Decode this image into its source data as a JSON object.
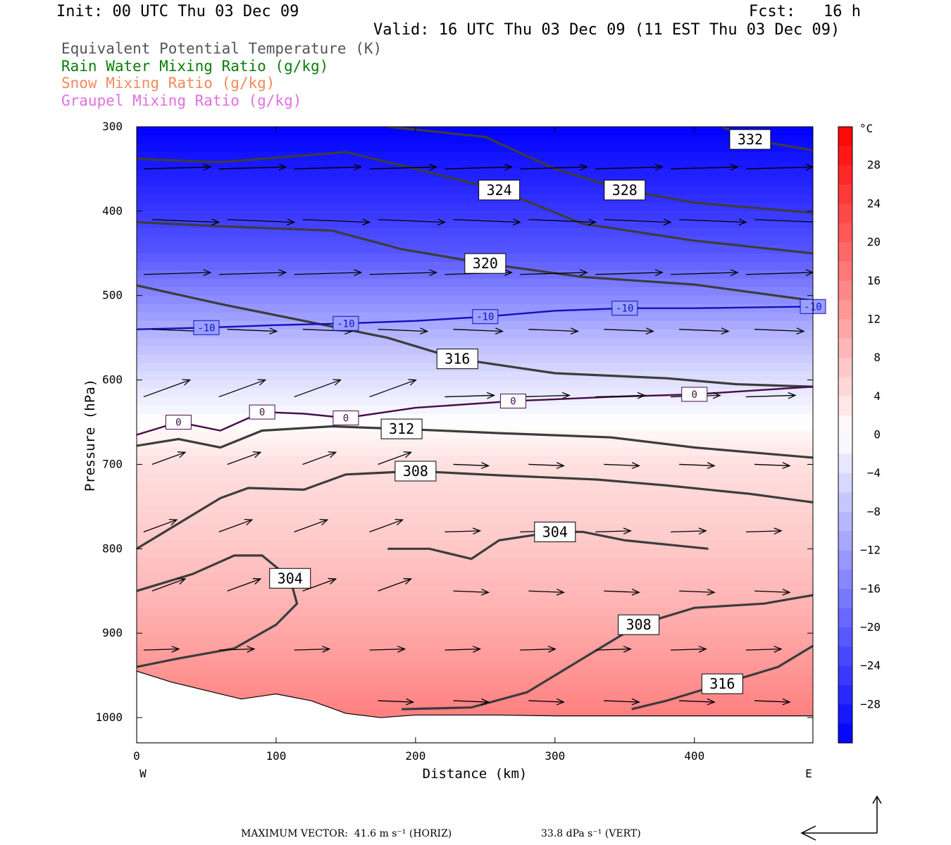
{
  "header": {
    "init": "Init: 00 UTC Thu 03 Dec 09",
    "fcst": "Fcst:   16 h",
    "valid": "Valid: 16 UTC Thu 03 Dec 09 (11 EST Thu 03 Dec 09)"
  },
  "legend": [
    {
      "text": "Equivalent Potential Temperature (K)",
      "color": "#555555"
    },
    {
      "text": "Rain Water Mixing Ratio (g/kg)",
      "color": "#0a7d0a"
    },
    {
      "text": "Snow Mixing Ratio (g/kg)",
      "color": "#f08a5a"
    },
    {
      "text": "Graupel Mixing Ratio (g/kg)",
      "color": "#e070e0"
    }
  ],
  "footer": {
    "max_vector_horiz": "MAXIMUM VECTOR:  41.6 m s⁻¹ (HORIZ)",
    "max_vector_vert": "33.8 dPa s⁻¹ (VERT)"
  },
  "chart_data": {
    "type": "heatmap",
    "xlabel": "Distance (km)",
    "ylabel": "Pressure (hPa)",
    "xlim": [
      0,
      485
    ],
    "ylim": [
      1030,
      300
    ],
    "x_ticks": [
      0,
      100,
      200,
      300,
      400
    ],
    "y_ticks": [
      300,
      400,
      500,
      600,
      700,
      800,
      900,
      1000
    ],
    "x_end_labels": {
      "left": "W",
      "right": "E"
    },
    "colorbar": {
      "unit": "°C",
      "ticks": [
        28,
        24,
        20,
        16,
        12,
        8,
        4,
        0,
        -4,
        -8,
        -12,
        -16,
        -20,
        -24,
        -28
      ],
      "range": [
        -32,
        32
      ]
    },
    "theta_e_contours": [
      {
        "value": 332,
        "points": [
          [
            420,
            300
          ],
          [
            440,
            315
          ],
          [
            485,
            328
          ]
        ]
      },
      {
        "value": 328,
        "points": [
          [
            180,
            300
          ],
          [
            250,
            312
          ],
          [
            300,
            350
          ],
          [
            350,
            375
          ],
          [
            400,
            390
          ],
          [
            485,
            402
          ]
        ]
      },
      {
        "value": 324,
        "points": [
          [
            0,
            338
          ],
          [
            60,
            342
          ],
          [
            150,
            330
          ],
          [
            200,
            350
          ],
          [
            260,
            375
          ],
          [
            320,
            415
          ],
          [
            400,
            435
          ],
          [
            485,
            450
          ]
        ]
      },
      {
        "value": 320,
        "points": [
          [
            0,
            413
          ],
          [
            60,
            418
          ],
          [
            140,
            423
          ],
          [
            190,
            445
          ],
          [
            250,
            462
          ],
          [
            320,
            478
          ],
          [
            400,
            487
          ],
          [
            485,
            506
          ]
        ]
      },
      {
        "value": 316,
        "points": [
          [
            0,
            488
          ],
          [
            60,
            510
          ],
          [
            120,
            530
          ],
          [
            180,
            550
          ],
          [
            230,
            575
          ],
          [
            300,
            592
          ],
          [
            380,
            598
          ],
          [
            430,
            605
          ],
          [
            485,
            608
          ]
        ]
      },
      {
        "value": 312,
        "points": [
          [
            0,
            678
          ],
          [
            30,
            670
          ],
          [
            60,
            680
          ],
          [
            90,
            660
          ],
          [
            140,
            655
          ],
          [
            190,
            658
          ],
          [
            260,
            663
          ],
          [
            340,
            668
          ],
          [
            400,
            680
          ],
          [
            485,
            692
          ]
        ]
      },
      {
        "value": 308,
        "points": [
          [
            0,
            800
          ],
          [
            30,
            770
          ],
          [
            60,
            740
          ],
          [
            80,
            728
          ],
          [
            120,
            730
          ],
          [
            150,
            712
          ],
          [
            200,
            708
          ],
          [
            260,
            713
          ],
          [
            330,
            718
          ],
          [
            380,
            725
          ],
          [
            440,
            735
          ],
          [
            485,
            745
          ]
        ]
      },
      {
        "value": 304,
        "points": [
          [
            0,
            940
          ],
          [
            30,
            930
          ],
          [
            70,
            918
          ],
          [
            100,
            890
          ],
          [
            115,
            865
          ],
          [
            110,
            835
          ],
          [
            90,
            808
          ],
          [
            70,
            808
          ],
          [
            40,
            830
          ],
          [
            0,
            850
          ]
        ]
      },
      {
        "value": 304,
        "points": [
          [
            180,
            800
          ],
          [
            210,
            800
          ],
          [
            240,
            812
          ],
          [
            260,
            790
          ],
          [
            300,
            780
          ],
          [
            320,
            780
          ],
          [
            350,
            790
          ],
          [
            410,
            800
          ]
        ]
      },
      {
        "value": 308,
        "points": [
          [
            190,
            990
          ],
          [
            240,
            988
          ],
          [
            280,
            970
          ],
          [
            320,
            930
          ],
          [
            360,
            890
          ],
          [
            400,
            870
          ],
          [
            450,
            865
          ],
          [
            485,
            855
          ]
        ]
      },
      {
        "value": 316,
        "points": [
          [
            355,
            990
          ],
          [
            380,
            980
          ],
          [
            420,
            960
          ],
          [
            460,
            940
          ],
          [
            485,
            915
          ]
        ]
      }
    ],
    "isotherms": [
      {
        "value": -10,
        "color": "#1010c0",
        "points": [
          [
            0,
            540
          ],
          [
            50,
            538
          ],
          [
            100,
            535
          ],
          [
            150,
            533
          ],
          [
            200,
            530
          ],
          [
            250,
            525
          ],
          [
            300,
            518
          ],
          [
            350,
            515
          ],
          [
            400,
            515
          ],
          [
            485,
            513
          ]
        ]
      },
      {
        "value": 0,
        "color": "#4a0a4a",
        "points": [
          [
            0,
            665
          ],
          [
            30,
            650
          ],
          [
            60,
            660
          ],
          [
            90,
            638
          ],
          [
            120,
            640
          ],
          [
            150,
            645
          ],
          [
            200,
            633
          ],
          [
            270,
            625
          ],
          [
            340,
            620
          ],
          [
            400,
            617
          ],
          [
            485,
            608
          ]
        ]
      }
    ]
  }
}
